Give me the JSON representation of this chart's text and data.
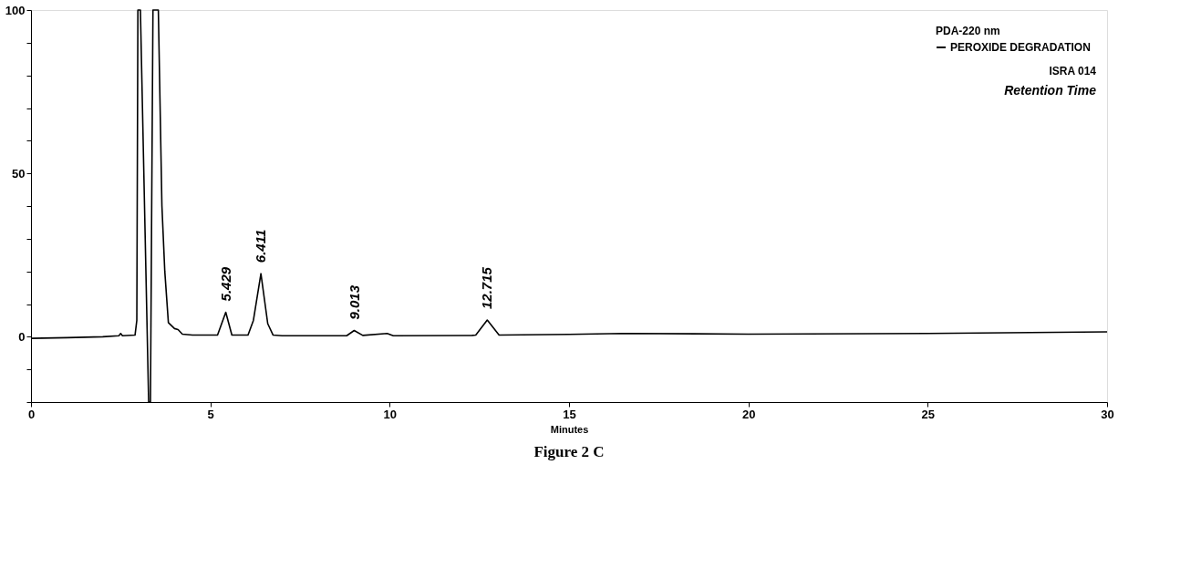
{
  "chart_data": {
    "type": "line",
    "title": "Figure 2 C",
    "xlabel": "Minutes",
    "legend_title": "PDA-220 nm",
    "legend": "top right",
    "marker": "none",
    "line_style": "solid",
    "xlim": [
      0,
      30
    ],
    "xticks": [
      0,
      5,
      10,
      15,
      20,
      25,
      30
    ],
    "ylim": [
      -20,
      100
    ],
    "yticks": [
      {
        "value": -20,
        "label": null
      },
      {
        "value": -10,
        "label": null
      },
      0,
      {
        "value": 10,
        "label": null
      },
      {
        "value": 20,
        "label": null
      },
      {
        "value": 30,
        "label": null
      },
      {
        "value": 40,
        "label": null
      },
      50,
      {
        "value": 60,
        "label": null
      },
      {
        "value": 70,
        "label": null
      },
      {
        "value": 80,
        "label": null
      },
      {
        "value": 90,
        "label": null
      },
      100
    ],
    "series": [
      {
        "name": "PEROXIDE DEGRADATION",
        "color": "#000000",
        "x": [
          0,
          1,
          2,
          2.45,
          2.5,
          2.55,
          2.9,
          2.95,
          2.98,
          3.05,
          3.28,
          3.33,
          3.4,
          3.55,
          3.65,
          3.73,
          3.83,
          4.0,
          4.1,
          4.22,
          4.5,
          5.2,
          5.43,
          5.6,
          6.05,
          6.2,
          6.41,
          6.6,
          6.75,
          7,
          8.8,
          9.01,
          9.25,
          9.93,
          10.1,
          12.3,
          12.4,
          12.72,
          13.05,
          15,
          16.5,
          20,
          25,
          30
        ],
        "values": [
          -0.5,
          -0.3,
          0,
          0.3,
          1,
          0.3,
          0.5,
          5,
          100,
          100,
          -20,
          -20,
          100,
          100,
          40,
          20,
          4.3,
          2.5,
          2.2,
          0.8,
          0.5,
          0.5,
          7.5,
          0.5,
          0.5,
          5,
          19.3,
          4,
          0.5,
          0.3,
          0.3,
          1.9,
          0.4,
          1,
          0.3,
          0.4,
          0.5,
          5.1,
          0.5,
          0.7,
          1,
          0.8,
          1,
          1.5
        ]
      }
    ],
    "annotations": [
      "ISRA 014",
      "Retention Time",
      {
        "text": "5.429",
        "x": 5.429,
        "y": 7.5
      },
      {
        "text": "6.411",
        "x": 6.411,
        "y": 19.3
      },
      {
        "text": "9.013",
        "x": 9.013,
        "y": 1.9
      },
      {
        "text": "12.715",
        "x": 12.715,
        "y": 5.1
      }
    ]
  }
}
